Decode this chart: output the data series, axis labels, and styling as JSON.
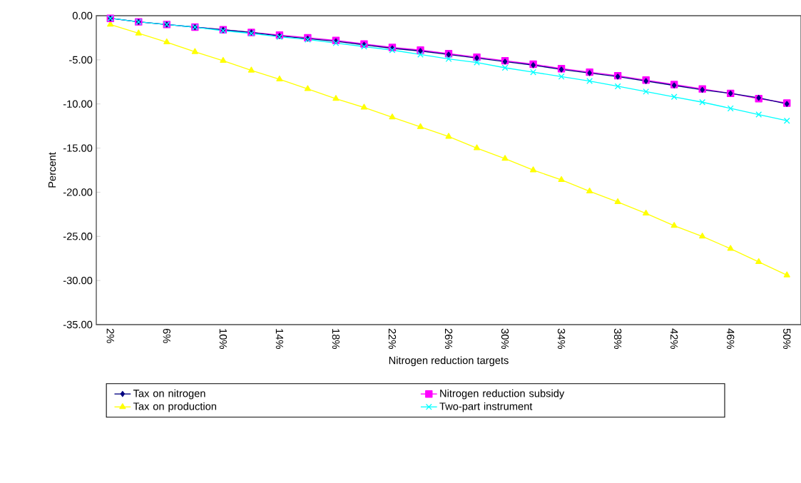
{
  "chart_data": {
    "type": "line",
    "xlabel": "Nitrogen reduction targets",
    "ylabel": "Percent",
    "categories": [
      "2%",
      null,
      "6%",
      null,
      "10%",
      null,
      "14%",
      null,
      "18%",
      null,
      "22%",
      null,
      "26%",
      null,
      "30%",
      null,
      "34%",
      null,
      "38%",
      null,
      "42%",
      null,
      "46%",
      null,
      "50%"
    ],
    "series": [
      {
        "name": "Tax on nitrogen",
        "color": "#000080",
        "marker": "diamond",
        "values": [
          -0.3,
          -0.7,
          -1.0,
          -1.3,
          -1.6,
          -1.9,
          -2.3,
          -2.6,
          -2.9,
          -3.3,
          -3.7,
          -4.0,
          -4.4,
          -4.8,
          -5.2,
          -5.6,
          -6.1,
          -6.5,
          -6.9,
          -7.4,
          -7.9,
          -8.4,
          -8.8,
          -9.3,
          -10.0
        ]
      },
      {
        "name": "Nitrogen reduction subsidy",
        "color": "#ff00ff",
        "marker": "square",
        "values": [
          -0.3,
          -0.7,
          -1.0,
          -1.3,
          -1.6,
          -1.9,
          -2.2,
          -2.5,
          -2.8,
          -3.2,
          -3.6,
          -3.9,
          -4.3,
          -4.7,
          -5.1,
          -5.5,
          -6.0,
          -6.4,
          -6.8,
          -7.3,
          -7.8,
          -8.3,
          -8.8,
          -9.4,
          -9.9
        ]
      },
      {
        "name": "Tax on production",
        "color": "#ffff00",
        "marker": "triangle",
        "values": [
          -1.0,
          -2.0,
          -3.0,
          -4.1,
          -5.1,
          -6.2,
          -7.2,
          -8.3,
          -9.4,
          -10.4,
          -11.5,
          -12.6,
          -13.7,
          -15.0,
          -16.2,
          -17.5,
          -18.6,
          -19.9,
          -21.1,
          -22.4,
          -23.8,
          -25.0,
          -26.4,
          -27.9,
          -29.4
        ]
      },
      {
        "name": "Two-part instrument",
        "color": "#00ffff",
        "marker": "cross",
        "values": [
          -0.3,
          -0.7,
          -1.0,
          -1.3,
          -1.7,
          -2.0,
          -2.4,
          -2.7,
          -3.1,
          -3.5,
          -3.9,
          -4.4,
          -4.9,
          -5.3,
          -5.9,
          -6.4,
          -6.9,
          -7.4,
          -8.0,
          -8.6,
          -9.2,
          -9.8,
          -10.5,
          -11.2,
          -11.9
        ]
      }
    ],
    "ylim": [
      -35,
      0
    ],
    "yticks": [
      {
        "value": 0,
        "label": "0.00"
      },
      {
        "value": -5,
        "label": "-5.00"
      },
      {
        "value": -10,
        "label": "-10.00"
      },
      {
        "value": -15,
        "label": "-15.00"
      },
      {
        "value": -20,
        "label": "-20.00"
      },
      {
        "value": -25,
        "label": "-25.00"
      },
      {
        "value": -30,
        "label": "-30.00"
      },
      {
        "value": -35,
        "label": "-35.00"
      }
    ],
    "legend": "bottom",
    "grid": false,
    "line_style": "solid"
  }
}
